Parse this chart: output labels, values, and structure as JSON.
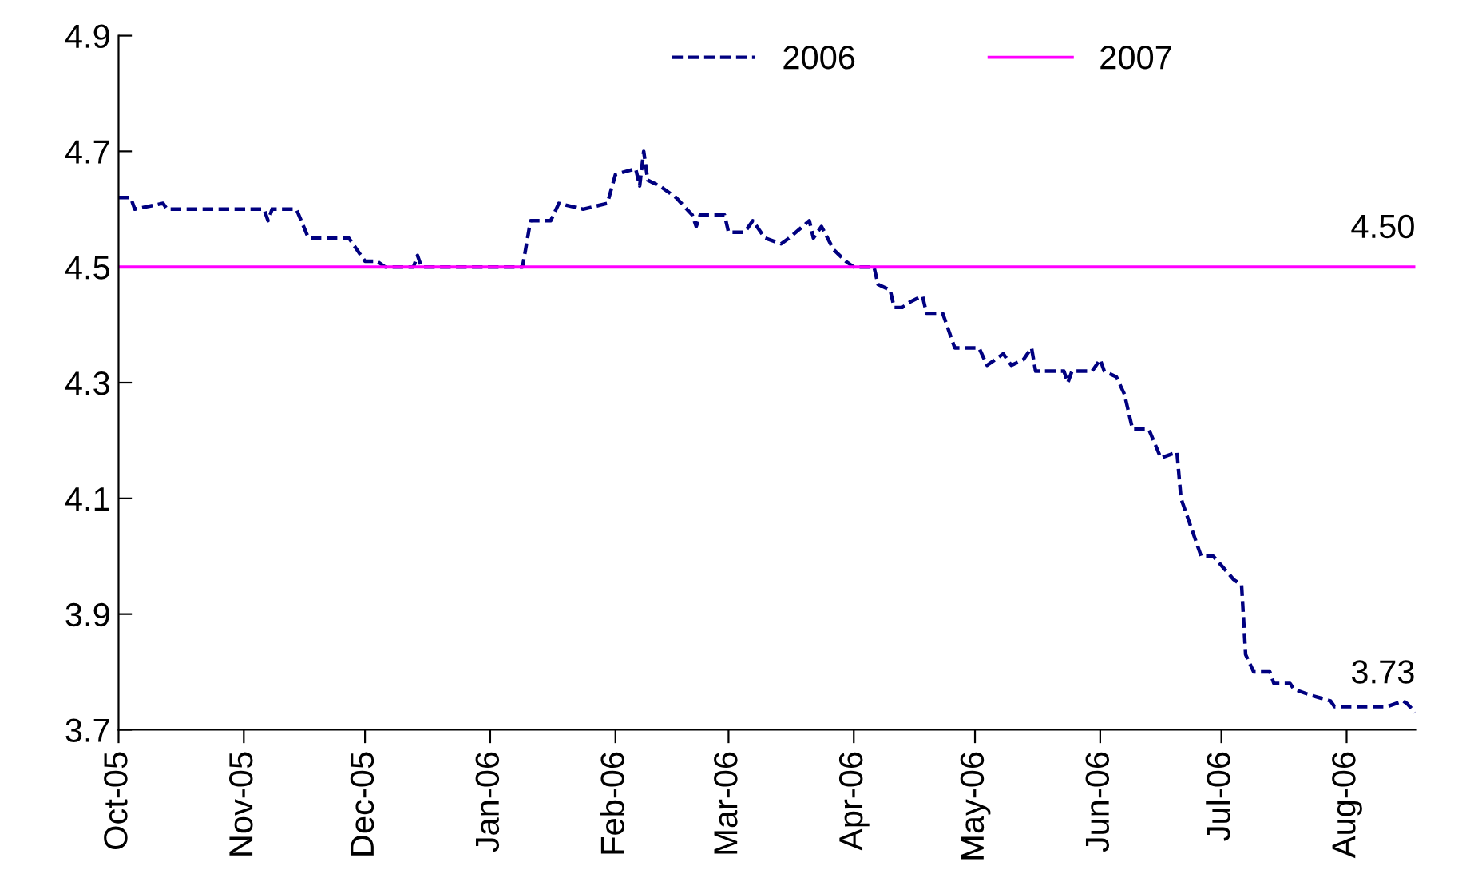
{
  "chart_data": {
    "type": "line",
    "xlim": [
      "2005-10-01",
      "2006-08-18"
    ],
    "ylim": [
      3.7,
      4.9
    ],
    "xticks": [
      {
        "value": "2005-10-01",
        "label": "Oct-05"
      },
      {
        "value": "2005-11-01",
        "label": "Nov-05"
      },
      {
        "value": "2005-12-01",
        "label": "Dec-05"
      },
      {
        "value": "2006-01-01",
        "label": "Jan-06"
      },
      {
        "value": "2006-02-01",
        "label": "Feb-06"
      },
      {
        "value": "2006-03-01",
        "label": "Mar-06"
      },
      {
        "value": "2006-04-01",
        "label": "Apr-06"
      },
      {
        "value": "2006-05-01",
        "label": "May-06"
      },
      {
        "value": "2006-06-01",
        "label": "Jun-06"
      },
      {
        "value": "2006-07-01",
        "label": "Jul-06"
      },
      {
        "value": "2006-08-01",
        "label": "Aug-06"
      }
    ],
    "yticks": [
      3.7,
      3.9,
      4.1,
      4.3,
      4.5,
      4.7,
      4.9
    ],
    "grid": false,
    "legend": "top",
    "marker": "none",
    "series": [
      {
        "name": "2006",
        "color": "#000080",
        "line_style": "dashed",
        "x": [
          "2005-10-01",
          "2005-10-04",
          "2005-10-05",
          "2005-10-12",
          "2005-10-13",
          "2005-11-06",
          "2005-11-07",
          "2005-11-08",
          "2005-11-14",
          "2005-11-17",
          "2005-11-27",
          "2005-11-29",
          "2005-12-01",
          "2005-12-04",
          "2005-12-06",
          "2005-12-13",
          "2005-12-14",
          "2005-12-15",
          "2006-01-09",
          "2006-01-11",
          "2006-01-16",
          "2006-01-18",
          "2006-01-24",
          "2006-01-30",
          "2006-02-01",
          "2006-02-06",
          "2006-02-07",
          "2006-02-08",
          "2006-02-09",
          "2006-02-12",
          "2006-02-16",
          "2006-02-20",
          "2006-02-21",
          "2006-02-22",
          "2006-02-28",
          "2006-03-01",
          "2006-03-05",
          "2006-03-07",
          "2006-03-10",
          "2006-03-14",
          "2006-03-16",
          "2006-03-21",
          "2006-03-22",
          "2006-03-24",
          "2006-03-27",
          "2006-03-30",
          "2006-04-01",
          "2006-04-06",
          "2006-04-07",
          "2006-04-10",
          "2006-04-11",
          "2006-04-13",
          "2006-04-15",
          "2006-04-18",
          "2006-04-19",
          "2006-04-23",
          "2006-04-26",
          "2006-05-02",
          "2006-05-04",
          "2006-05-08",
          "2006-05-10",
          "2006-05-13",
          "2006-05-15",
          "2006-05-16",
          "2006-05-23",
          "2006-05-24",
          "2006-05-25",
          "2006-05-30",
          "2006-06-01",
          "2006-06-02",
          "2006-06-05",
          "2006-06-07",
          "2006-06-09",
          "2006-06-13",
          "2006-06-16",
          "2006-06-20",
          "2006-06-21",
          "2006-06-23",
          "2006-06-26",
          "2006-06-29",
          "2006-07-04",
          "2006-07-06",
          "2006-07-07",
          "2006-07-09",
          "2006-07-13",
          "2006-07-14",
          "2006-07-18",
          "2006-07-19",
          "2006-07-23",
          "2006-07-28",
          "2006-07-29",
          "2006-08-11",
          "2006-08-15",
          "2006-08-16",
          "2006-08-18"
        ],
        "values": [
          4.62,
          4.62,
          4.6,
          4.61,
          4.6,
          4.6,
          4.58,
          4.6,
          4.6,
          4.55,
          4.55,
          4.53,
          4.51,
          4.51,
          4.5,
          4.5,
          4.52,
          4.5,
          4.5,
          4.58,
          4.58,
          4.61,
          4.6,
          4.61,
          4.66,
          4.67,
          4.64,
          4.7,
          4.65,
          4.64,
          4.62,
          4.59,
          4.57,
          4.59,
          4.59,
          4.56,
          4.56,
          4.58,
          4.55,
          4.54,
          4.55,
          4.58,
          4.55,
          4.57,
          4.53,
          4.51,
          4.5,
          4.5,
          4.47,
          4.46,
          4.43,
          4.43,
          4.44,
          4.45,
          4.42,
          4.42,
          4.36,
          4.36,
          4.33,
          4.35,
          4.33,
          4.34,
          4.36,
          4.32,
          4.32,
          4.3,
          4.32,
          4.32,
          4.34,
          4.32,
          4.31,
          4.28,
          4.22,
          4.22,
          4.17,
          4.18,
          4.1,
          4.06,
          4.0,
          4.0,
          3.96,
          3.95,
          3.83,
          3.8,
          3.8,
          3.78,
          3.78,
          3.77,
          3.76,
          3.75,
          3.74,
          3.74,
          3.75,
          3.745,
          3.73
        ]
      },
      {
        "name": "2007",
        "color": "#ff00ff",
        "line_style": "solid",
        "x": [
          "2005-10-01",
          "2006-08-18"
        ],
        "values": [
          4.5,
          4.5
        ]
      }
    ],
    "annotations": [
      {
        "text": "4.50",
        "x": "2006-08-18",
        "y": 4.5
      },
      {
        "text": "3.73",
        "x": "2006-08-18",
        "y": 3.73
      }
    ]
  }
}
